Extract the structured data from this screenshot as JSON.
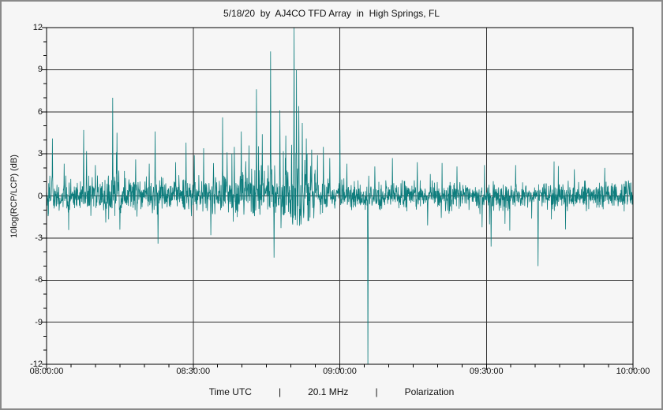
{
  "chart_data": {
    "type": "line",
    "title": "5/18/20  by  AJ4CO TFD Array  in  High Springs, FL",
    "ylabel": "10log(RCP/LCP) (dB)",
    "footer_parts": [
      "Time UTC",
      "|",
      "20.1 MHz",
      "|",
      "Polarization"
    ],
    "ylim": [
      -12,
      12
    ],
    "yticks": [
      12,
      9,
      6,
      3,
      0,
      -3,
      -6,
      -9,
      -12
    ],
    "ytick_minor_step": 1,
    "xticks": [
      "08:00:00",
      "08:30:00",
      "09:00:00",
      "09:30:00",
      "10:00:00"
    ],
    "x_minor_per_major": 6,
    "x_span_hours": 2,
    "line_color": "#0e7d7d",
    "grid_color": "#2e2e2e",
    "background": "#f6f6f6",
    "series_model": {
      "description": "10log(RCP/LCP) noise band centered at 0 dB with impulsive spikes; burst activity 08:35-08:57, quieter after 09:10",
      "seed": 42,
      "samples": 2200,
      "noise_envelope": [
        [
          0,
          0.6
        ],
        [
          0.25,
          0.62
        ],
        [
          0.45,
          0.6
        ],
        [
          0.55,
          0.48
        ],
        [
          0.75,
          0.44
        ],
        [
          1,
          0.46
        ]
      ],
      "bursts": [
        {
          "from": 0.1,
          "to": 0.14,
          "mult": 1.3
        },
        {
          "from": 0.28,
          "to": 0.34,
          "mult": 1.3
        },
        {
          "from": 0.34,
          "to": 0.4,
          "mult": 1.5
        },
        {
          "from": 0.4,
          "to": 0.46,
          "mult": 2.2
        }
      ],
      "spikes": [
        {
          "t": 0.01,
          "v": 4.1
        },
        {
          "t": 0.03,
          "v": 2.3
        },
        {
          "t": 0.063,
          "v": 4.7
        },
        {
          "t": 0.068,
          "v": 3.2
        },
        {
          "t": 0.083,
          "v": 2.2
        },
        {
          "t": 0.113,
          "v": 7.0
        },
        {
          "t": 0.12,
          "v": 4.5
        },
        {
          "t": 0.125,
          "v": -2.4
        },
        {
          "t": 0.152,
          "v": 2.6
        },
        {
          "t": 0.175,
          "v": 2.3
        },
        {
          "t": 0.185,
          "v": 4.6
        },
        {
          "t": 0.19,
          "v": -3.4
        },
        {
          "t": 0.22,
          "v": 2.4
        },
        {
          "t": 0.238,
          "v": 3.8
        },
        {
          "t": 0.252,
          "v": 2.9
        },
        {
          "t": 0.268,
          "v": 3.4
        },
        {
          "t": 0.28,
          "v": -2.8
        },
        {
          "t": 0.3,
          "v": 5.6
        },
        {
          "t": 0.308,
          "v": 3.1
        },
        {
          "t": 0.32,
          "v": 3.5
        },
        {
          "t": 0.332,
          "v": 4.6
        },
        {
          "t": 0.345,
          "v": 3.6
        },
        {
          "t": 0.358,
          "v": 7.6
        },
        {
          "t": 0.368,
          "v": 4.4
        },
        {
          "t": 0.382,
          "v": 10.3
        },
        {
          "t": 0.388,
          "v": -4.4
        },
        {
          "t": 0.398,
          "v": 6.1
        },
        {
          "t": 0.408,
          "v": 4.3
        },
        {
          "t": 0.422,
          "v": 12.0
        },
        {
          "t": 0.426,
          "v": 9.0
        },
        {
          "t": 0.43,
          "v": 6.4
        },
        {
          "t": 0.436,
          "v": 5.2
        },
        {
          "t": 0.443,
          "v": 4.1
        },
        {
          "t": 0.452,
          "v": 3.3
        },
        {
          "t": 0.462,
          "v": 2.9
        },
        {
          "t": 0.472,
          "v": 3.5
        },
        {
          "t": 0.483,
          "v": 2.7
        },
        {
          "t": 0.5,
          "v": 4.7
        },
        {
          "t": 0.512,
          "v": 2.3
        },
        {
          "t": 0.548,
          "v": -12.0
        },
        {
          "t": 0.56,
          "v": 2.1
        },
        {
          "t": 0.59,
          "v": 2.7
        },
        {
          "t": 0.632,
          "v": 2.4
        },
        {
          "t": 0.65,
          "v": -2.1
        },
        {
          "t": 0.7,
          "v": 2.1
        },
        {
          "t": 0.758,
          "v": -3.6
        },
        {
          "t": 0.8,
          "v": 2.2
        },
        {
          "t": 0.838,
          "v": -5.0
        },
        {
          "t": 0.9,
          "v": 1.9
        },
        {
          "t": 0.952,
          "v": 2.0
        }
      ]
    }
  }
}
